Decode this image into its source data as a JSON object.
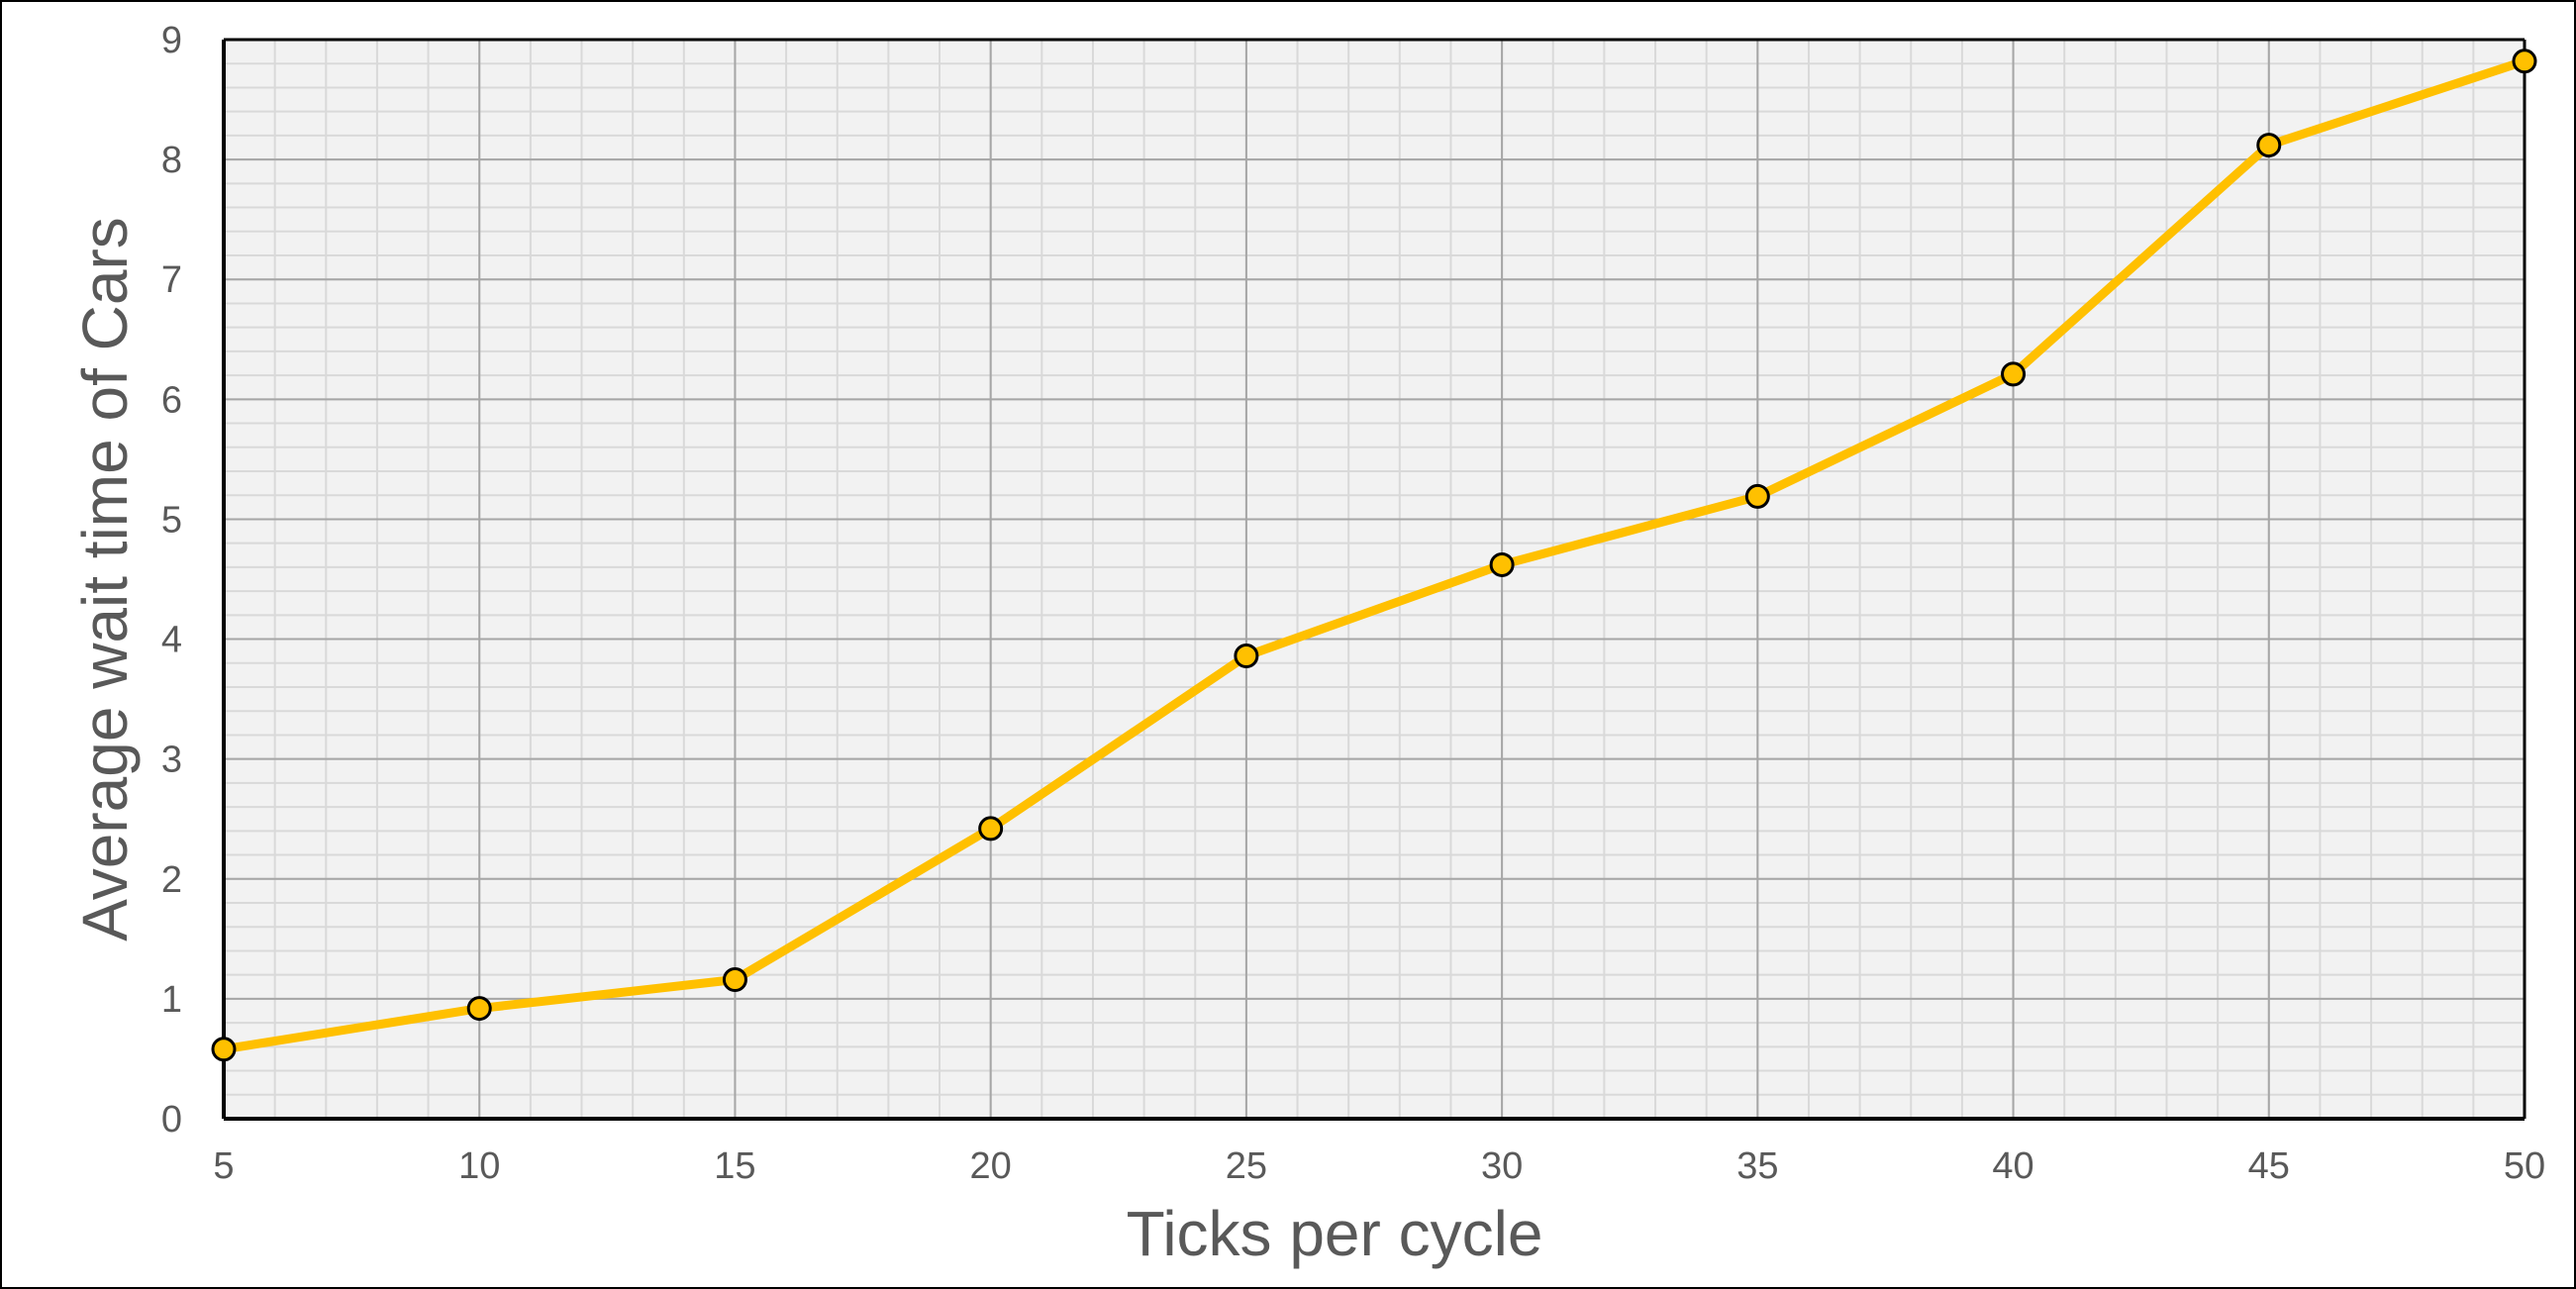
{
  "chart_data": {
    "type": "line",
    "title": "",
    "xlabel": "Ticks per cycle",
    "ylabel": "Average wait time of Cars",
    "x": [
      5,
      10,
      15,
      20,
      25,
      30,
      35,
      40,
      45,
      50
    ],
    "x_tick_labels": [
      "5",
      "10",
      "15",
      "20",
      "25",
      "30",
      "35",
      "40",
      "45",
      "50"
    ],
    "y_tick_labels": [
      "0",
      "1",
      "2",
      "3",
      "4",
      "5",
      "6",
      "7",
      "8",
      "9"
    ],
    "xlim": [
      5,
      50
    ],
    "ylim": [
      0,
      9
    ],
    "x_minor_step": 1,
    "y_minor_step": 0.2,
    "grid": true,
    "legend": "none",
    "series": [
      {
        "values": [
          0.58,
          0.92,
          1.16,
          2.42,
          3.86,
          4.62,
          5.19,
          6.21,
          8.12,
          8.82
        ],
        "color": "#FFC000"
      }
    ],
    "colors": {
      "plot_background": "#F2F2F2",
      "major_grid": "#A6A6A6",
      "minor_grid": "#D9D9D9",
      "axis": "#000000",
      "marker_stroke": "#000000",
      "text": "#595959"
    }
  }
}
